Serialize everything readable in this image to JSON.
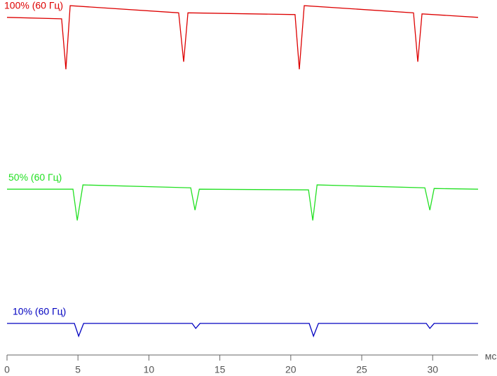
{
  "chart_data": {
    "type": "line",
    "x_label": "мс",
    "xlim": [
      0,
      33.2
    ],
    "xticks": [
      0,
      5,
      10,
      15,
      20,
      25,
      30
    ],
    "ylim": [
      0,
      100
    ],
    "series": [
      {
        "name": "100% (60 Гц)",
        "color": "#dd0000",
        "x": [
          0,
          3.85,
          4.15,
          4.45,
          12.1,
          12.45,
          12.75,
          20.3,
          20.6,
          20.95,
          28.65,
          28.95,
          29.25,
          33.2
        ],
        "values": [
          95.1,
          94.7,
          80.5,
          98.4,
          96.4,
          82.6,
          96.4,
          95.9,
          80.5,
          98.4,
          96.4,
          82.6,
          96.1,
          95.1
        ]
      },
      {
        "name": "50% (60 Гц)",
        "color": "#22e022",
        "x": [
          0,
          4.65,
          4.95,
          5.35,
          12.95,
          13.25,
          13.55,
          21.25,
          21.55,
          21.85,
          29.45,
          29.8,
          30.1,
          33.2
        ],
        "values": [
          46.7,
          46.7,
          37.9,
          47.9,
          47.1,
          40.8,
          46.7,
          46.5,
          37.9,
          47.9,
          47.1,
          40.8,
          46.9,
          46.7
        ]
      },
      {
        "name": "10% (60 Гц)",
        "color": "#0000c0",
        "x": [
          0,
          4.75,
          5.05,
          5.4,
          13.05,
          13.3,
          13.6,
          21.3,
          21.6,
          21.95,
          29.55,
          29.8,
          30.1,
          33.2
        ],
        "values": [
          8.9,
          8.9,
          5.3,
          8.9,
          8.9,
          7.5,
          8.9,
          8.9,
          5.3,
          8.9,
          8.9,
          7.5,
          8.9,
          8.9
        ]
      }
    ]
  }
}
